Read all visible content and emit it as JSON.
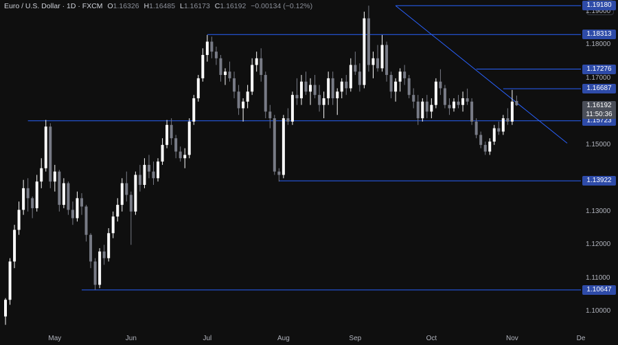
{
  "header": {
    "instrument": "Euro / U.S. Dollar · 1D · FXCM",
    "o_key": "O",
    "o_val": "1.16326",
    "h_key": "H",
    "h_val": "1.16485",
    "l_key": "L",
    "l_val": "1.16173",
    "c_key": "C",
    "c_val": "1.16192",
    "change": "−0.00134 (−0.12%)",
    "currency": "USD"
  },
  "colors": {
    "background": "#0f0f0f",
    "bull": "#ffffff",
    "bear": "#787b86",
    "level_line": "#2962ff",
    "level_label": "#2e4ba8"
  },
  "chart_data": {
    "type": "candlestick",
    "ylim": [
      1.0955,
      1.1935
    ],
    "y_ticks": [
      "1.19000",
      "1.18000",
      "1.17000",
      "1.15000",
      "1.13000",
      "1.12000",
      "1.11000",
      "1.10000"
    ],
    "x_ticks": [
      "May",
      "Jun",
      "Jul",
      "Aug",
      "Sep",
      "Oct",
      "Nov",
      "De"
    ],
    "levels": [
      "1.19180",
      "1.18313",
      "1.17276",
      "1.16687",
      "1.15723",
      "1.13922",
      "1.10647"
    ],
    "last_price": "1.16192",
    "countdown": "11:50:36",
    "trendline_start": 1.1918,
    "trendline_end": 1.1505,
    "candles": [
      [
        1.0985,
        1.104,
        1.096,
        1.1035
      ],
      [
        1.1035,
        1.116,
        1.102,
        1.115
      ],
      [
        1.115,
        1.126,
        1.113,
        1.1245
      ],
      [
        1.1245,
        1.133,
        1.123,
        1.1305
      ],
      [
        1.1305,
        1.1395,
        1.129,
        1.137
      ],
      [
        1.137,
        1.14,
        1.13,
        1.134
      ],
      [
        1.134,
        1.1345,
        1.128,
        1.131
      ],
      [
        1.131,
        1.141,
        1.13,
        1.139
      ],
      [
        1.139,
        1.146,
        1.137,
        1.143
      ],
      [
        1.143,
        1.1575,
        1.142,
        1.1555
      ],
      [
        1.1555,
        1.1565,
        1.137,
        1.139
      ],
      [
        1.139,
        1.144,
        1.136,
        1.142
      ],
      [
        1.142,
        1.1425,
        1.13,
        1.132
      ],
      [
        1.132,
        1.14,
        1.131,
        1.1385
      ],
      [
        1.1385,
        1.139,
        1.129,
        1.1305
      ],
      [
        1.1305,
        1.133,
        1.126,
        1.128
      ],
      [
        1.128,
        1.136,
        1.127,
        1.134
      ],
      [
        1.134,
        1.1355,
        1.129,
        1.1315
      ],
      [
        1.1315,
        1.132,
        1.121,
        1.123
      ],
      [
        1.123,
        1.1235,
        1.113,
        1.115
      ],
      [
        1.115,
        1.116,
        1.1065,
        1.108
      ],
      [
        1.108,
        1.119,
        1.107,
        1.118
      ],
      [
        1.118,
        1.12,
        1.114,
        1.116
      ],
      [
        1.116,
        1.125,
        1.115,
        1.1235
      ],
      [
        1.1235,
        1.13,
        1.122,
        1.1285
      ],
      [
        1.1285,
        1.134,
        1.127,
        1.132
      ],
      [
        1.132,
        1.14,
        1.13,
        1.1385
      ],
      [
        1.1385,
        1.142,
        1.133,
        1.135
      ],
      [
        1.135,
        1.136,
        1.12,
        1.13
      ],
      [
        1.13,
        1.142,
        1.129,
        1.141
      ],
      [
        1.141,
        1.144,
        1.136,
        1.138
      ],
      [
        1.138,
        1.146,
        1.137,
        1.144
      ],
      [
        1.144,
        1.147,
        1.14,
        1.142
      ],
      [
        1.142,
        1.145,
        1.138,
        1.14
      ],
      [
        1.14,
        1.146,
        1.139,
        1.145
      ],
      [
        1.145,
        1.152,
        1.144,
        1.15
      ],
      [
        1.15,
        1.1575,
        1.149,
        1.156
      ],
      [
        1.156,
        1.158,
        1.15,
        1.152
      ],
      [
        1.152,
        1.153,
        1.146,
        1.148
      ],
      [
        1.148,
        1.1495,
        1.145,
        1.146
      ],
      [
        1.146,
        1.149,
        1.143,
        1.147
      ],
      [
        1.147,
        1.158,
        1.146,
        1.157
      ],
      [
        1.157,
        1.165,
        1.156,
        1.164
      ],
      [
        1.164,
        1.171,
        1.163,
        1.17
      ],
      [
        1.17,
        1.179,
        1.169,
        1.177
      ],
      [
        1.177,
        1.183,
        1.175,
        1.181
      ],
      [
        1.181,
        1.1825,
        1.176,
        1.178
      ],
      [
        1.178,
        1.1795,
        1.174,
        1.176
      ],
      [
        1.176,
        1.177,
        1.169,
        1.171
      ],
      [
        1.171,
        1.173,
        1.168,
        1.172
      ],
      [
        1.172,
        1.175,
        1.169,
        1.17
      ],
      [
        1.17,
        1.172,
        1.164,
        1.166
      ],
      [
        1.166,
        1.168,
        1.159,
        1.161
      ],
      [
        1.161,
        1.164,
        1.157,
        1.163
      ],
      [
        1.163,
        1.168,
        1.161,
        1.166
      ],
      [
        1.166,
        1.176,
        1.165,
        1.174
      ],
      [
        1.174,
        1.178,
        1.172,
        1.176
      ],
      [
        1.176,
        1.179,
        1.169,
        1.171
      ],
      [
        1.171,
        1.172,
        1.158,
        1.16
      ],
      [
        1.16,
        1.162,
        1.155,
        1.158
      ],
      [
        1.158,
        1.159,
        1.141,
        1.142
      ],
      [
        1.142,
        1.143,
        1.139,
        1.141
      ],
      [
        1.141,
        1.159,
        1.14,
        1.158
      ],
      [
        1.158,
        1.161,
        1.156,
        1.157
      ],
      [
        1.157,
        1.166,
        1.156,
        1.165
      ],
      [
        1.165,
        1.17,
        1.162,
        1.164
      ],
      [
        1.164,
        1.171,
        1.162,
        1.169
      ],
      [
        1.169,
        1.172,
        1.165,
        1.166
      ],
      [
        1.166,
        1.17,
        1.162,
        1.168
      ],
      [
        1.168,
        1.171,
        1.164,
        1.165
      ],
      [
        1.165,
        1.168,
        1.16,
        1.162
      ],
      [
        1.162,
        1.166,
        1.158,
        1.164
      ],
      [
        1.164,
        1.172,
        1.162,
        1.17
      ],
      [
        1.17,
        1.172,
        1.162,
        1.164
      ],
      [
        1.164,
        1.167,
        1.159,
        1.166
      ],
      [
        1.166,
        1.17,
        1.164,
        1.169
      ],
      [
        1.169,
        1.171,
        1.165,
        1.167
      ],
      [
        1.167,
        1.176,
        1.166,
        1.174
      ],
      [
        1.174,
        1.178,
        1.171,
        1.172
      ],
      [
        1.172,
        1.1745,
        1.166,
        1.168
      ],
      [
        1.168,
        1.19,
        1.167,
        1.188
      ],
      [
        1.188,
        1.1918,
        1.172,
        1.174
      ],
      [
        1.174,
        1.178,
        1.17,
        1.176
      ],
      [
        1.176,
        1.18,
        1.172,
        1.173
      ],
      [
        1.173,
        1.183,
        1.172,
        1.18
      ],
      [
        1.18,
        1.181,
        1.169,
        1.171
      ],
      [
        1.171,
        1.172,
        1.164,
        1.166
      ],
      [
        1.166,
        1.17,
        1.163,
        1.169
      ],
      [
        1.169,
        1.173,
        1.166,
        1.172
      ],
      [
        1.172,
        1.174,
        1.168,
        1.17
      ],
      [
        1.17,
        1.171,
        1.164,
        1.165
      ],
      [
        1.165,
        1.167,
        1.161,
        1.163
      ],
      [
        1.163,
        1.165,
        1.156,
        1.158
      ],
      [
        1.158,
        1.164,
        1.157,
        1.163
      ],
      [
        1.163,
        1.165,
        1.158,
        1.16
      ],
      [
        1.16,
        1.164,
        1.158,
        1.162
      ],
      [
        1.162,
        1.17,
        1.161,
        1.169
      ],
      [
        1.169,
        1.1727,
        1.165,
        1.167
      ],
      [
        1.167,
        1.168,
        1.161,
        1.162
      ],
      [
        1.162,
        1.164,
        1.159,
        1.161
      ],
      [
        1.161,
        1.164,
        1.16,
        1.163
      ],
      [
        1.163,
        1.165,
        1.161,
        1.162
      ],
      [
        1.162,
        1.166,
        1.16,
        1.164
      ],
      [
        1.164,
        1.1669,
        1.162,
        1.163
      ],
      [
        1.163,
        1.164,
        1.156,
        1.157
      ],
      [
        1.157,
        1.158,
        1.152,
        1.153
      ],
      [
        1.153,
        1.154,
        1.149,
        1.15
      ],
      [
        1.15,
        1.151,
        1.147,
        1.148
      ],
      [
        1.148,
        1.152,
        1.147,
        1.151
      ],
      [
        1.151,
        1.156,
        1.15,
        1.155
      ],
      [
        1.155,
        1.157,
        1.153,
        1.154
      ],
      [
        1.154,
        1.159,
        1.153,
        1.158
      ],
      [
        1.158,
        1.161,
        1.156,
        1.157
      ],
      [
        1.157,
        1.1665,
        1.156,
        1.163
      ],
      [
        1.1632,
        1.1648,
        1.1617,
        1.1619
      ]
    ]
  }
}
